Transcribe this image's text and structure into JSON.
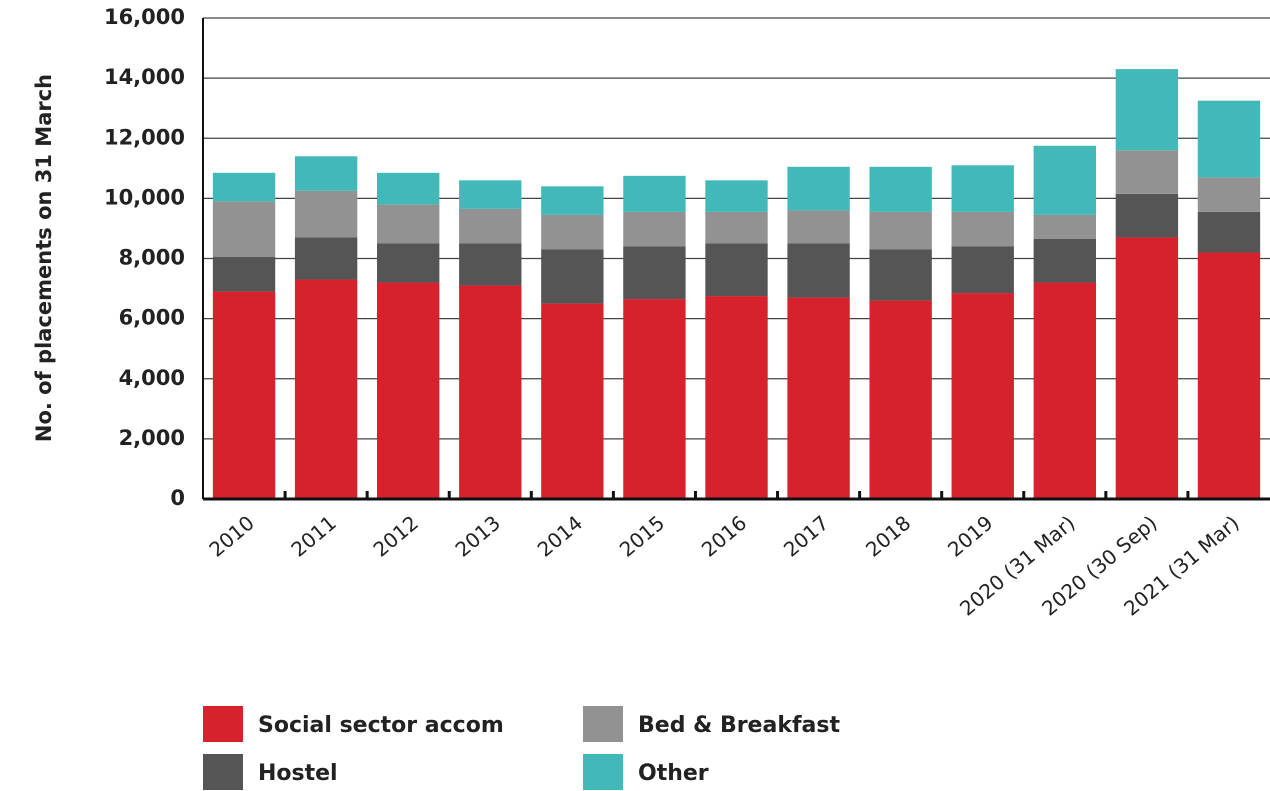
{
  "chart_data": {
    "type": "stacked_bar",
    "y_label": "No. of placements on 31 March",
    "categories": [
      "2010",
      "2011",
      "2012",
      "2013",
      "2014",
      "2015",
      "2016",
      "2017",
      "2018",
      "2019",
      "2020 (31 Mar)",
      "2020 (30 Sep)",
      "2021 (31 Mar)"
    ],
    "series": [
      {
        "name": "Social sector accom",
        "color": "#d7222e",
        "values": [
          6900,
          7300,
          7200,
          7100,
          6500,
          6650,
          6750,
          6700,
          6600,
          6850,
          7200,
          8700,
          8200
        ]
      },
      {
        "name": "Hostel",
        "color": "#555555",
        "values": [
          1150,
          1400,
          1300,
          1400,
          1800,
          1750,
          1750,
          1800,
          1700,
          1550,
          1450,
          1450,
          1350
        ]
      },
      {
        "name": "Bed & Breakfast",
        "color": "#929292",
        "values": [
          1850,
          1550,
          1300,
          1150,
          1150,
          1150,
          1050,
          1100,
          1250,
          1150,
          800,
          1450,
          1150
        ]
      },
      {
        "name": "Other",
        "color": "#43b8b8",
        "values": [
          950,
          1150,
          1050,
          950,
          950,
          1200,
          1050,
          1450,
          1500,
          1550,
          2300,
          2700,
          2550
        ]
      }
    ],
    "ylim": [
      0,
      16000
    ],
    "yticks": [
      0,
      {
        "value": 2000,
        "label": "2,000"
      },
      {
        "value": 4000,
        "label": "4,000"
      },
      {
        "value": 6000,
        "label": "6,000"
      },
      {
        "value": 8000,
        "label": "8,000"
      },
      {
        "value": 10000,
        "label": "10,000"
      },
      {
        "value": 12000,
        "label": "12,000"
      },
      {
        "value": 14000,
        "label": "14,000"
      },
      {
        "value": 16000,
        "label": "16,000"
      }
    ],
    "grid": true
  }
}
